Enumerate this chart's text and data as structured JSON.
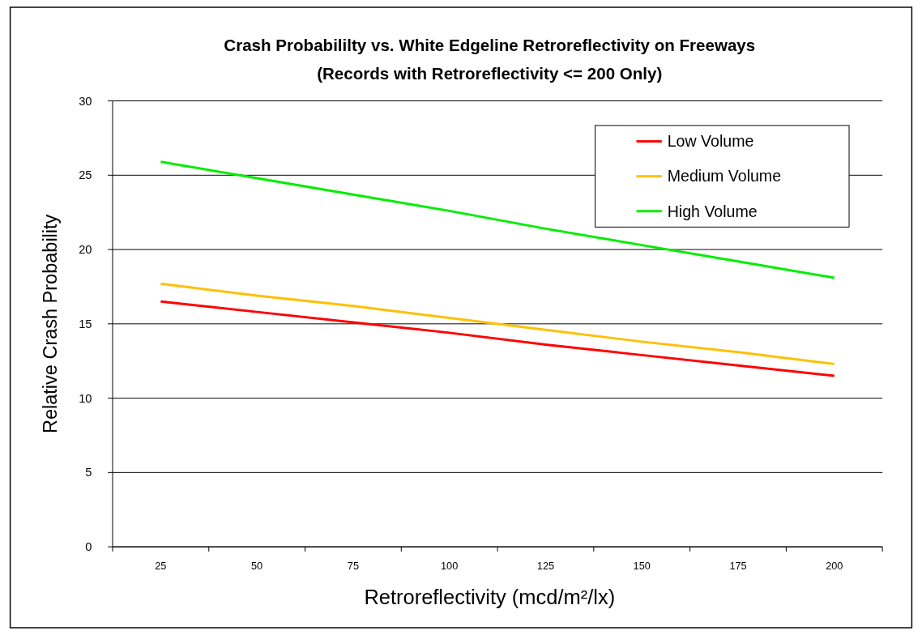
{
  "chart_data": {
    "type": "line",
    "title": "Crash Probabililty vs. White Edgeline Retroreflectivity on Freeways",
    "subtitle": "(Records with Retroreflectivity <= 200 Only)",
    "xlabel": "Retroreflectivity (mcd/m²/lx)",
    "ylabel": "Relative Crash Probability",
    "categories": [
      "25",
      "50",
      "75",
      "100",
      "125",
      "150",
      "175",
      "200"
    ],
    "series": [
      {
        "name": "Low Volume",
        "color": "#ff0000",
        "values": [
          16.5,
          15.8,
          15.1,
          14.4,
          13.6,
          12.9,
          12.2,
          11.5
        ]
      },
      {
        "name": "Medium Volume",
        "color": "#ffc000",
        "values": [
          17.7,
          16.9,
          16.2,
          15.4,
          14.6,
          13.8,
          13.1,
          12.3
        ]
      },
      {
        "name": "High Volume",
        "color": "#00ee00",
        "values": [
          25.9,
          24.8,
          23.7,
          22.6,
          21.4,
          20.3,
          19.2,
          18.1
        ]
      }
    ],
    "ylim": [
      0,
      30
    ],
    "yticks": [
      0,
      5,
      10,
      15,
      20,
      25,
      30
    ],
    "grid": "y",
    "legend": "top right",
    "marker": "none",
    "line_style": "solid"
  }
}
